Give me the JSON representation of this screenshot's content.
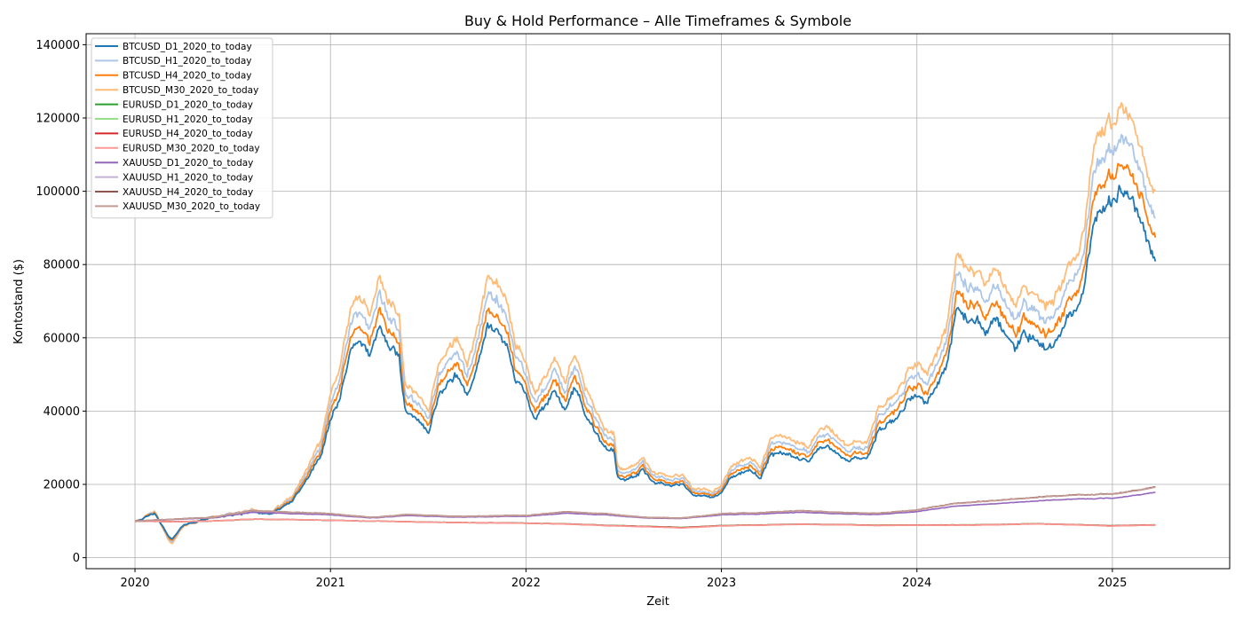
{
  "chart_data": {
    "type": "line",
    "title": "Buy & Hold Performance – Alle Timeframes & Symbole",
    "xlabel": "Zeit",
    "ylabel": "Kontostand ($)",
    "xlim": [
      2019.75,
      2025.6
    ],
    "ylim": [
      -3000,
      143000
    ],
    "x_ticks": [
      "2020",
      "2021",
      "2022",
      "2023",
      "2024",
      "2025"
    ],
    "y_ticks": [
      "0",
      "20000",
      "40000",
      "60000",
      "80000",
      "100000",
      "120000",
      "140000"
    ],
    "grid": true,
    "legend_position": "top-left",
    "series": [
      {
        "name": "BTCUSD_D1_2020_to_today",
        "color": "#1f77b4",
        "base": "btc",
        "scale": 1.0,
        "width": 1.8
      },
      {
        "name": "BTCUSD_H1_2020_to_today",
        "color": "#aec7e8",
        "base": "btc",
        "scale": 1.16,
        "width": 1.8
      },
      {
        "name": "BTCUSD_H4_2020_to_today",
        "color": "#ff7f0e",
        "base": "btc",
        "scale": 1.08,
        "width": 1.8
      },
      {
        "name": "BTCUSD_M30_2020_to_today",
        "color": "#ffbb78",
        "base": "btc",
        "scale": 1.25,
        "width": 1.8
      },
      {
        "name": "EURUSD_D1_2020_to_today",
        "color": "#2ca02c",
        "base": "eur",
        "scale": 0.97,
        "width": 1.6
      },
      {
        "name": "EURUSD_H1_2020_to_today",
        "color": "#98df8a",
        "base": "eur",
        "scale": 1.02,
        "width": 1.6
      },
      {
        "name": "EURUSD_H4_2020_to_today",
        "color": "#d62728",
        "base": "eur",
        "scale": 1.0,
        "width": 1.6
      },
      {
        "name": "EURUSD_M30_2020_to_today",
        "color": "#ff9896",
        "base": "eur",
        "scale": 1.05,
        "width": 1.6
      },
      {
        "name": "XAUUSD_D1_2020_to_today",
        "color": "#9467bd",
        "base": "xau",
        "scale": 0.85,
        "width": 1.6
      },
      {
        "name": "XAUUSD_H1_2020_to_today",
        "color": "#c5b0d5",
        "base": "xau",
        "scale": 1.0,
        "width": 1.6
      },
      {
        "name": "XAUUSD_H4_2020_to_today",
        "color": "#8c564b",
        "base": "xau",
        "scale": 1.01,
        "width": 1.6
      },
      {
        "name": "XAUUSD_M30_2020_to_today",
        "color": "#c49c94",
        "base": "xau",
        "scale": 1.0,
        "width": 1.6
      }
    ],
    "base_curves": {
      "btc": {
        "x": [
          2020.0,
          2020.1,
          2020.17,
          2020.19,
          2020.25,
          2020.4,
          2020.55,
          2020.6,
          2020.7,
          2020.8,
          2020.85,
          2020.9,
          2020.95,
          2021.0,
          2021.05,
          2021.1,
          2021.15,
          2021.2,
          2021.25,
          2021.3,
          2021.35,
          2021.38,
          2021.42,
          2021.5,
          2021.55,
          2021.6,
          2021.65,
          2021.7,
          2021.75,
          2021.8,
          2021.85,
          2021.9,
          2021.95,
          2022.0,
          2022.05,
          2022.1,
          2022.15,
          2022.2,
          2022.25,
          2022.3,
          2022.35,
          2022.4,
          2022.45,
          2022.47,
          2022.5,
          2022.55,
          2022.6,
          2022.65,
          2022.7,
          2022.75,
          2022.8,
          2022.85,
          2022.9,
          2022.95,
          2023.0,
          2023.05,
          2023.1,
          2023.15,
          2023.2,
          2023.25,
          2023.3,
          2023.35,
          2023.4,
          2023.45,
          2023.5,
          2023.55,
          2023.6,
          2023.65,
          2023.7,
          2023.75,
          2023.8,
          2023.85,
          2023.9,
          2023.95,
          2024.0,
          2024.05,
          2024.1,
          2024.15,
          2024.2,
          2024.25,
          2024.3,
          2024.35,
          2024.4,
          2024.45,
          2024.5,
          2024.55,
          2024.6,
          2024.65,
          2024.7,
          2024.75,
          2024.8,
          2024.85,
          2024.9,
          2024.95,
          2025.0,
          2025.05,
          2025.1,
          2025.15,
          2025.2,
          2025.22
        ],
        "y": [
          10000,
          12000,
          6000,
          5000,
          9000,
          11000,
          12000,
          12500,
          12000,
          15000,
          19000,
          23000,
          27000,
          38000,
          45000,
          55000,
          60000,
          55000,
          62000,
          58000,
          55000,
          40000,
          38000,
          34000,
          44000,
          48000,
          50000,
          44000,
          52000,
          63000,
          62000,
          57000,
          48000,
          45000,
          38000,
          42000,
          45000,
          40000,
          46000,
          40000,
          35000,
          30000,
          29000,
          22000,
          21000,
          22000,
          24000,
          21000,
          20000,
          19500,
          20000,
          17000,
          17000,
          16500,
          17500,
          22000,
          23000,
          24000,
          21000,
          28000,
          28500,
          27500,
          27000,
          26500,
          30000,
          30000,
          29000,
          26000,
          27000,
          27500,
          34000,
          36000,
          38000,
          43000,
          44000,
          42000,
          47000,
          52000,
          68000,
          65000,
          64000,
          62000,
          66000,
          61000,
          58000,
          62000,
          60000,
          57000,
          59000,
          63000,
          66000,
          72000,
          91000,
          97000,
          96000,
          100000,
          98000,
          90000,
          84000,
          82000
        ]
      },
      "eur": {
        "x": [
          2020.0,
          2020.2,
          2020.4,
          2020.6,
          2020.8,
          2021.0,
          2021.2,
          2021.4,
          2021.6,
          2021.8,
          2022.0,
          2022.2,
          2022.4,
          2022.6,
          2022.8,
          2023.0,
          2023.2,
          2023.4,
          2023.6,
          2023.8,
          2024.0,
          2024.2,
          2024.4,
          2024.6,
          2024.8,
          2025.0,
          2025.22
        ],
        "y": [
          10000,
          9800,
          10000,
          10500,
          10400,
          10200,
          10000,
          9800,
          9600,
          9500,
          9400,
          9200,
          8800,
          8500,
          8200,
          8700,
          8900,
          9100,
          9000,
          8800,
          8900,
          8900,
          9000,
          9200,
          9000,
          8700,
          8900
        ]
      },
      "xau": {
        "x": [
          2020.0,
          2020.2,
          2020.4,
          2020.6,
          2020.8,
          2021.0,
          2021.2,
          2021.4,
          2021.6,
          2021.8,
          2022.0,
          2022.2,
          2022.4,
          2022.6,
          2022.8,
          2023.0,
          2023.2,
          2023.4,
          2023.6,
          2023.8,
          2024.0,
          2024.2,
          2024.4,
          2024.6,
          2024.8,
          2025.0,
          2025.22
        ],
        "y": [
          10000,
          10500,
          11000,
          12800,
          12400,
          12000,
          11000,
          11800,
          11300,
          11400,
          11500,
          12500,
          12000,
          11000,
          10800,
          12000,
          12300,
          12800,
          12300,
          12100,
          13000,
          14800,
          15600,
          16400,
          17100,
          17300,
          19200
        ]
      }
    }
  }
}
